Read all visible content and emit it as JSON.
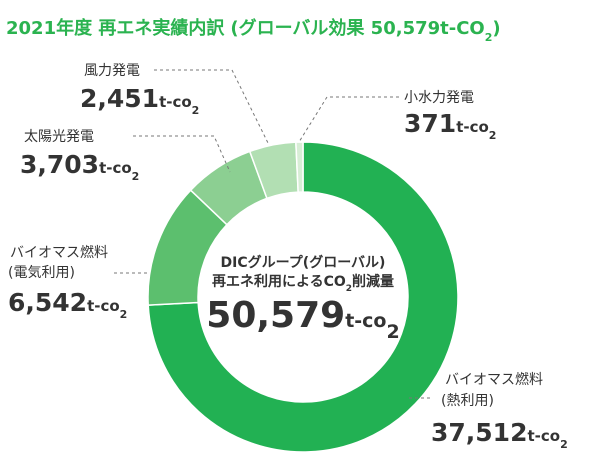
{
  "chart_data": {
    "type": "pie",
    "donut": true,
    "title": "2021年度 再エネ実績内訳",
    "subtitle": "(グローバル効果 50,579t-CO",
    "subtitle_sub": "2",
    "subtitle_close": ")",
    "unit_main": "t-co",
    "unit_sub": "2",
    "center": {
      "line1": "DICグループ(グローバル)",
      "line2_pre": "再エネ利用によるCO",
      "line2_sub": "2",
      "line2_post": "削減量",
      "total": "50,579",
      "total_unit": "t-co",
      "total_unit_sub": "2"
    },
    "slices": [
      {
        "label": "バイオマス燃料",
        "label2": "(熱利用)",
        "value": 37512,
        "display": "37,512",
        "color": "#22b153"
      },
      {
        "label": "バイオマス燃料",
        "label2": "(電気利用)",
        "value": 6542,
        "display": "6,542",
        "color": "#5cbf6e"
      },
      {
        "label": "太陽光発電",
        "label2": "",
        "value": 3703,
        "display": "3,703",
        "color": "#8ccf92"
      },
      {
        "label": "風力発電",
        "label2": "",
        "value": 2451,
        "display": "2,451",
        "color": "#b2dfb3"
      },
      {
        "label": "小水力発電",
        "label2": "",
        "value": 371,
        "display": "371",
        "color": "#d8eed6"
      }
    ]
  }
}
